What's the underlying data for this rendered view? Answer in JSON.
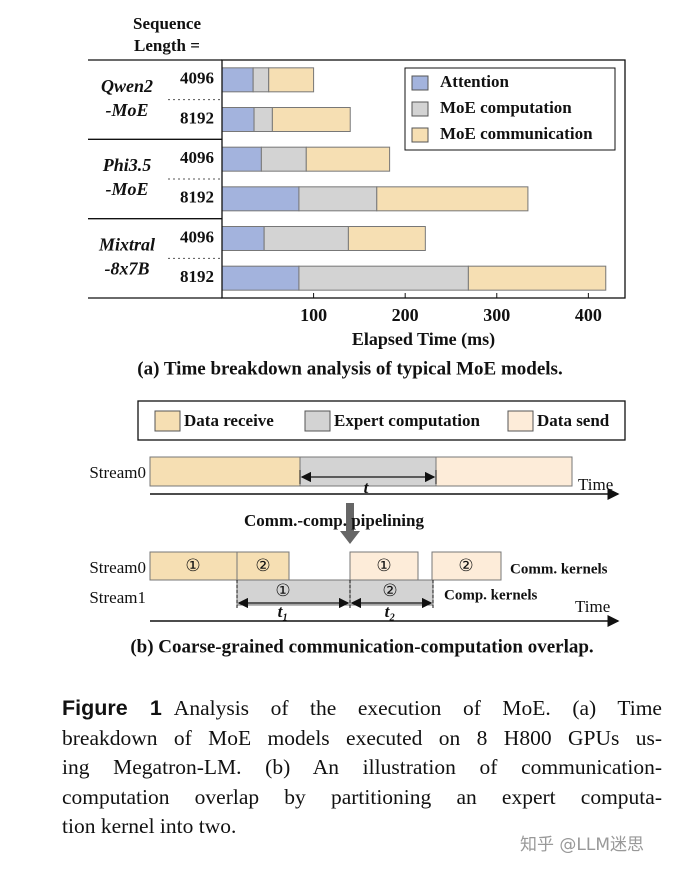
{
  "chart_data": {
    "type": "bar",
    "orientation": "horizontal",
    "stacked": true,
    "header": [
      "Sequence",
      "Length ="
    ],
    "groups": [
      [
        "Qwen2",
        "-MoE"
      ],
      [
        "Phi3.5",
        "-MoE"
      ],
      [
        "Mixtral",
        "-8x7B"
      ]
    ],
    "categories": [
      "4096",
      "8192",
      "4096",
      "8192",
      "4096",
      "8192"
    ],
    "series": [
      {
        "name": "Attention",
        "color": "#a3b3dd",
        "values": [
          34,
          35,
          43,
          84,
          46,
          84
        ]
      },
      {
        "name": "MoE computation",
        "color": "#d3d3d3",
        "values": [
          17,
          20,
          49,
          85,
          92,
          185
        ]
      },
      {
        "name": "MoE communication",
        "color": "#f6dfb3",
        "values": [
          49,
          85,
          91,
          165,
          84,
          150
        ]
      }
    ],
    "xlabel": "Elapsed Time (ms)",
    "xlim": [
      0,
      440
    ],
    "xticks": [
      100,
      200,
      300,
      400
    ],
    "legend": "upper right",
    "caption": "(a) Time breakdown analysis of typical MoE models."
  },
  "diagram": {
    "legend": [
      "Data receive",
      "Expert computation",
      "Data send"
    ],
    "top": {
      "stream": "Stream0",
      "duration": "t",
      "time": "Time"
    },
    "pipelining": "Comm.-comp. pipelining",
    "bottom": {
      "streams": [
        "Stream0",
        "Stream1"
      ],
      "receive": [
        "①",
        "②"
      ],
      "compute": [
        "①",
        "②"
      ],
      "send": [
        "①",
        "②"
      ],
      "durations": [
        "t₁",
        "t₂"
      ],
      "notes": [
        "Comm. kernels",
        "Comp. kernels"
      ],
      "time": "Time"
    },
    "caption": "(b) Coarse-grained communication-computation overlap."
  },
  "figure_caption": {
    "label": "Figure 1",
    "lines": [
      "Analysis of the execution of MoE. (a) Time",
      "breakdown of MoE models executed on 8 H800 GPUs us-",
      "ing Megatron-LM. (b) An illustration of communication-",
      "computation overlap by partitioning an expert computa-",
      "tion kernel into two."
    ]
  },
  "watermark": "知乎 @LLM迷思"
}
